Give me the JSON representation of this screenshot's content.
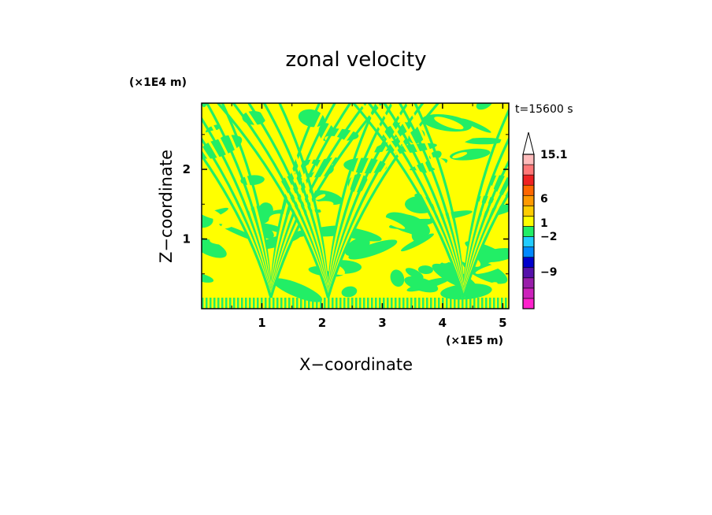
{
  "chart_data": {
    "type": "heatmap",
    "title": "zonal velocity",
    "xlabel": "X−coordinate",
    "ylabel": "Z−coordinate",
    "x_unit": "(×1E5 m)",
    "y_unit": "(×1E4 m)",
    "time_label": "t=15600 s",
    "xlim": [
      0.0,
      5.1
    ],
    "ylim": [
      0.0,
      2.95
    ],
    "x_ticks": [
      1,
      2,
      3,
      4,
      5
    ],
    "y_ticks": [
      1,
      2
    ],
    "x_tick_labels": [
      "1",
      "2",
      "3",
      "4",
      "5"
    ],
    "y_tick_labels": [
      "1",
      "2"
    ],
    "dominant_colors": [
      "#ffff00",
      "#22ee66"
    ],
    "colorbar": {
      "labels": [
        {
          "value": 15.1,
          "text": "15.1"
        },
        {
          "value": 6,
          "text": "6"
        },
        {
          "value": 1,
          "text": "1"
        },
        {
          "value": -2,
          "text": "−2"
        },
        {
          "value": -9,
          "text": "−9"
        }
      ],
      "bands": [
        {
          "color": "#ff22cc"
        },
        {
          "color": "#cc22bb"
        },
        {
          "color": "#991eaa"
        },
        {
          "color": "#5511aa"
        },
        {
          "color": "#0000cc"
        },
        {
          "color": "#0088ff"
        },
        {
          "color": "#22ccff"
        },
        {
          "color": "#22ee66"
        },
        {
          "color": "#ffff00"
        },
        {
          "color": "#ffcc00"
        },
        {
          "color": "#ff9900"
        },
        {
          "color": "#ff6600"
        },
        {
          "color": "#ee2222"
        },
        {
          "color": "#ff7777"
        },
        {
          "color": "#ffbbbb"
        },
        {
          "color": "#ffffff"
        }
      ]
    }
  }
}
